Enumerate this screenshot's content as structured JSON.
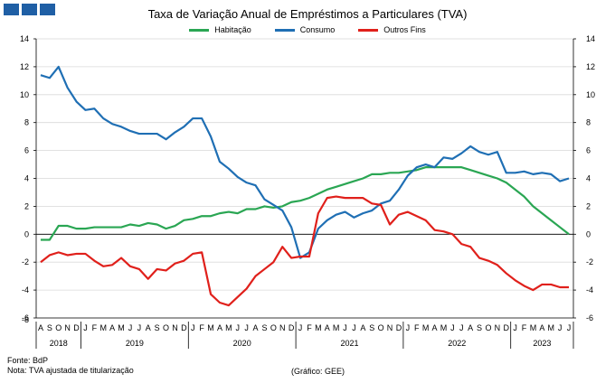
{
  "header": {
    "logo_colors": [
      "#1f5fa5"
    ]
  },
  "chart_data": {
    "type": "line",
    "title": "Taxa de Variação Anual de Empréstimos a Particulares (TVA)",
    "ylim": [
      -6,
      14
    ],
    "yticks_left": [
      "14",
      "12",
      "10",
      "8",
      "6",
      "4",
      "2",
      "0",
      "-2",
      "-4",
      "-6",
      "-8"
    ],
    "yticks_right": [
      "14",
      "12",
      "10",
      "8",
      "6",
      "4",
      "2",
      "0",
      "-2",
      "-4",
      "-6"
    ],
    "months": [
      "A",
      "S",
      "O",
      "N",
      "D",
      "J",
      "F",
      "M",
      "A",
      "M",
      "J",
      "J",
      "A",
      "S",
      "O",
      "N",
      "D",
      "J",
      "F",
      "M",
      "A",
      "M",
      "J",
      "J",
      "A",
      "S",
      "O",
      "N",
      "D",
      "J",
      "F",
      "M",
      "A",
      "M",
      "J",
      "J",
      "A",
      "S",
      "O",
      "N",
      "D",
      "J",
      "F",
      "M",
      "A",
      "M",
      "J",
      "J",
      "A",
      "S",
      "O",
      "N",
      "D",
      "J",
      "F",
      "M",
      "A",
      "M",
      "J",
      "J"
    ],
    "years": [
      {
        "label": "2018",
        "start": 0,
        "end": 4
      },
      {
        "label": "2019",
        "start": 5,
        "end": 16
      },
      {
        "label": "2020",
        "start": 17,
        "end": 28
      },
      {
        "label": "2021",
        "start": 29,
        "end": 40
      },
      {
        "label": "2022",
        "start": 41,
        "end": 52
      },
      {
        "label": "2023",
        "start": 53,
        "end": 59
      }
    ],
    "grid": true,
    "legend_position": "top-center",
    "series": [
      {
        "name": "Habitação",
        "color": "#2aa653",
        "values": [
          -0.4,
          -0.4,
          0.6,
          0.6,
          0.4,
          0.4,
          0.5,
          0.5,
          0.5,
          0.5,
          0.7,
          0.6,
          0.8,
          0.7,
          0.4,
          0.6,
          1.0,
          1.1,
          1.3,
          1.3,
          1.5,
          1.6,
          1.5,
          1.8,
          1.8,
          2.0,
          1.9,
          2.0,
          2.3,
          2.4,
          2.6,
          2.9,
          3.2,
          3.4,
          3.6,
          3.8,
          4.0,
          4.3,
          4.3,
          4.4,
          4.4,
          4.5,
          4.6,
          4.8,
          4.8,
          4.8,
          4.8,
          4.8,
          4.6,
          4.4,
          4.2,
          4.0,
          3.7,
          3.2,
          2.7,
          2.0,
          1.5,
          1.0,
          0.5,
          0.0
        ]
      },
      {
        "name": "Consumo",
        "color": "#1f6fb4",
        "values": [
          11.4,
          11.2,
          12.0,
          10.5,
          9.5,
          8.9,
          9.0,
          8.3,
          7.9,
          7.7,
          7.4,
          7.2,
          7.2,
          7.2,
          6.8,
          7.3,
          7.7,
          8.3,
          8.3,
          7.0,
          5.2,
          4.7,
          4.1,
          3.7,
          3.5,
          2.5,
          2.1,
          1.7,
          0.5,
          -1.7,
          -1.3,
          0.4,
          1.0,
          1.4,
          1.6,
          1.2,
          1.5,
          1.7,
          2.2,
          2.4,
          3.2,
          4.2,
          4.8,
          5.0,
          4.8,
          5.5,
          5.4,
          5.8,
          6.3,
          5.9,
          5.7,
          5.9,
          4.4,
          4.4,
          4.5,
          4.3,
          4.4,
          4.3,
          3.8,
          4.0
        ]
      },
      {
        "name": "Outros Fins",
        "color": "#e0201b",
        "values": [
          -2.0,
          -1.5,
          -1.3,
          -1.5,
          -1.4,
          -1.4,
          -1.9,
          -2.3,
          -2.2,
          -1.7,
          -2.3,
          -2.5,
          -3.2,
          -2.5,
          -2.6,
          -2.1,
          -1.9,
          -1.4,
          -1.3,
          -4.3,
          -4.9,
          -5.1,
          -4.5,
          -3.9,
          -3.0,
          -2.5,
          -2.0,
          -0.9,
          -1.7,
          -1.6,
          -1.6,
          1.5,
          2.6,
          2.7,
          2.6,
          2.6,
          2.6,
          2.2,
          2.1,
          0.7,
          1.4,
          1.6,
          1.3,
          1.0,
          0.3,
          0.2,
          0.0,
          -0.7,
          -0.9,
          -1.7,
          -1.9,
          -2.2,
          -2.8,
          -3.3,
          -3.7,
          -4.0,
          -3.6,
          -3.6,
          -3.8,
          -3.8
        ]
      }
    ]
  },
  "footer": {
    "source": "Fonte: BdP",
    "note": "Nota: TVA ajustada de titularização",
    "credit": "(Gráfico: GEE)"
  }
}
